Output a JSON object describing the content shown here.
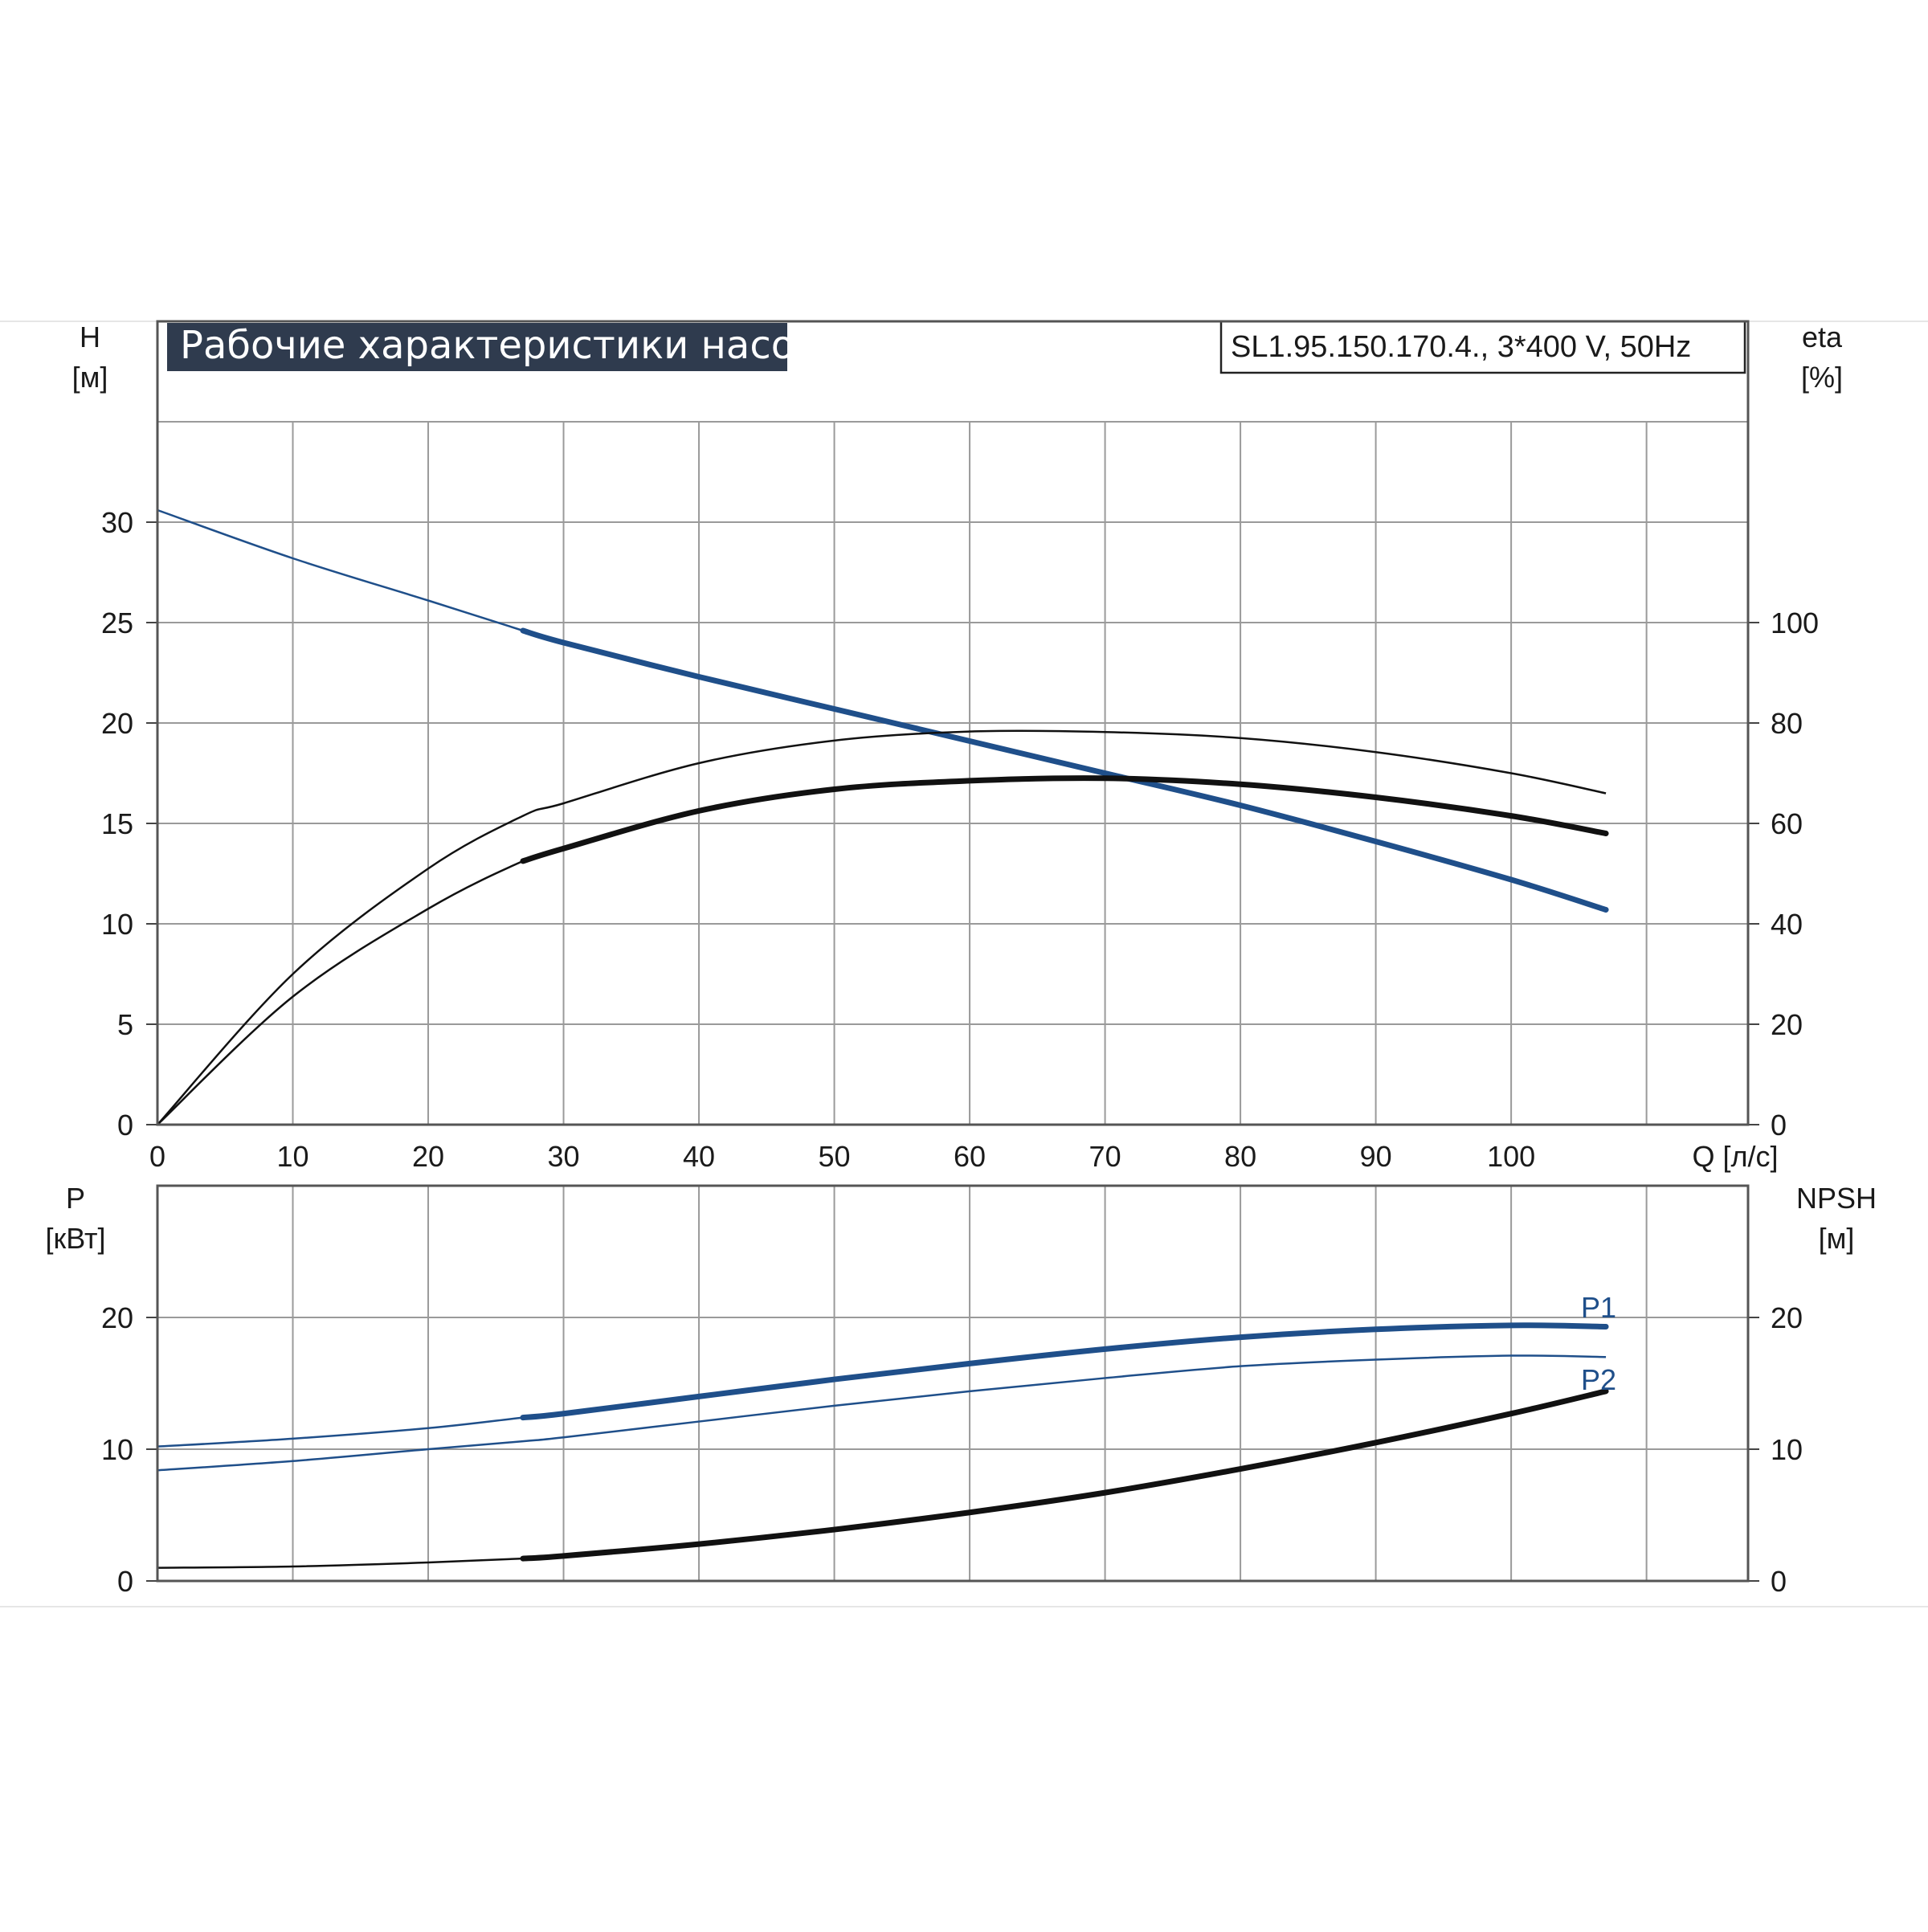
{
  "title": "Рабочие характеристики насоса",
  "model": "SL1.95.150.170.4., 3*400 V, 50Hz",
  "colors": {
    "blue": "#1f4f8a",
    "black": "#111111",
    "title_bg": "#2f3b4e"
  },
  "chart_data": [
    {
      "type": "line",
      "panel": "top",
      "x_axis": {
        "label": "Q [л/с]",
        "ticks": [
          0,
          10,
          20,
          30,
          40,
          50,
          60,
          70,
          80,
          90,
          100
        ],
        "range": [
          0,
          117.5
        ]
      },
      "y_left": {
        "label_top": "H",
        "label_unit": "[м]",
        "ticks": [
          0,
          5,
          10,
          15,
          20,
          25,
          30
        ],
        "range": [
          0,
          40
        ]
      },
      "y_right": {
        "label_top": "eta",
        "label_unit": "[%]",
        "ticks": [
          0,
          20,
          40,
          60,
          80,
          100
        ],
        "range": [
          0,
          160
        ]
      },
      "grid": true,
      "series": [
        {
          "key": "H",
          "axis": "left",
          "color": "#1f4f8a",
          "x": [
            0,
            10,
            20,
            27,
            30,
            40,
            50,
            60,
            70,
            80,
            90,
            100,
            107
          ],
          "y": [
            30.6,
            28.2,
            26.1,
            24.6,
            24.0,
            22.3,
            20.7,
            19.1,
            17.5,
            15.9,
            14.1,
            12.2,
            10.7
          ],
          "bold_from": 27
        },
        {
          "key": "eta1",
          "axis": "right",
          "color": "#111111",
          "x": [
            0,
            10,
            20,
            27,
            30,
            40,
            50,
            60,
            70,
            80,
            90,
            100,
            107
          ],
          "y": [
            0,
            30,
            51,
            61.5,
            64,
            72,
            76.5,
            78.3,
            78.2,
            77,
            74.2,
            70,
            66
          ],
          "bold_from": 107
        },
        {
          "key": "eta2",
          "axis": "right",
          "color": "#111111",
          "x": [
            0,
            10,
            20,
            27,
            30,
            40,
            50,
            60,
            70,
            80,
            90,
            100,
            107
          ],
          "y": [
            0,
            25.5,
            43,
            52.5,
            55,
            62.5,
            66.8,
            68.5,
            69,
            67.8,
            65.2,
            61.5,
            58
          ],
          "bold_from": 27
        }
      ]
    },
    {
      "type": "line",
      "panel": "bottom",
      "x_axis": {
        "ticks": [
          0,
          10,
          20,
          30,
          40,
          50,
          60,
          70,
          80,
          90,
          100
        ],
        "range": [
          0,
          117.5
        ]
      },
      "y_left": {
        "label_top": "P",
        "label_unit": "[кВт]",
        "ticks": [
          0,
          10,
          20
        ],
        "range": [
          0,
          30
        ]
      },
      "y_right": {
        "label_top": "NPSH",
        "label_unit": "[м]",
        "ticks": [
          0,
          10,
          20
        ],
        "range": [
          0,
          30
        ]
      },
      "grid": true,
      "series": [
        {
          "name": "P1",
          "axis": "left",
          "color": "#1f4f8a",
          "x": [
            0,
            10,
            20,
            27,
            30,
            40,
            50,
            60,
            70,
            80,
            90,
            100,
            107
          ],
          "y": [
            10.2,
            10.8,
            11.6,
            12.4,
            12.7,
            14.0,
            15.3,
            16.5,
            17.6,
            18.5,
            19.1,
            19.4,
            19.3
          ],
          "bold_from": 27
        },
        {
          "name": "P2",
          "axis": "left",
          "color": "#1f4f8a",
          "x": [
            0,
            10,
            20,
            27,
            30,
            40,
            50,
            60,
            70,
            80,
            90,
            100,
            107
          ],
          "y": [
            8.4,
            9.1,
            10.0,
            10.6,
            10.9,
            12.1,
            13.3,
            14.4,
            15.4,
            16.3,
            16.8,
            17.1,
            17.0
          ],
          "bold_from": 107
        },
        {
          "key": "NPSH",
          "axis": "right",
          "color": "#111111",
          "x": [
            0,
            10,
            20,
            27,
            30,
            40,
            50,
            60,
            70,
            80,
            90,
            100,
            107
          ],
          "y": [
            1.0,
            1.1,
            1.4,
            1.7,
            1.9,
            2.8,
            3.9,
            5.2,
            6.7,
            8.5,
            10.5,
            12.7,
            14.4
          ],
          "bold_from": 27
        }
      ]
    }
  ]
}
